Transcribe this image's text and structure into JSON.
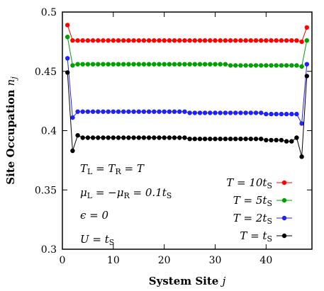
{
  "chart_data": {
    "type": "line",
    "xlabel": "System Site j",
    "ylabel": "Site Occupation n_j",
    "xlim": [
      0,
      49
    ],
    "ylim": [
      0.3,
      0.5
    ],
    "xticks": [
      "0",
      "10",
      "20",
      "30",
      "40"
    ],
    "yticks": [
      "0.3",
      "0.35",
      "0.4",
      "0.45",
      "0.5"
    ],
    "grid": false,
    "legend_position": "bottom-right",
    "annotations": [
      "T_L = T_R = T",
      "μ_L = −μ_R = 0.1t_S",
      "ϵ = 0",
      "U = t_S"
    ],
    "series": [
      {
        "name": "T = 10t_S",
        "color": "#ff0000",
        "x": [
          1,
          2,
          3,
          4,
          5,
          6,
          7,
          8,
          9,
          10,
          11,
          12,
          13,
          14,
          15,
          16,
          17,
          18,
          19,
          20,
          21,
          22,
          23,
          24,
          25,
          26,
          27,
          28,
          29,
          30,
          31,
          32,
          33,
          34,
          35,
          36,
          37,
          38,
          39,
          40,
          41,
          42,
          43,
          44,
          45,
          46,
          47,
          48
        ],
        "y": [
          0.489,
          0.476,
          0.476,
          0.476,
          0.476,
          0.476,
          0.476,
          0.476,
          0.476,
          0.476,
          0.476,
          0.476,
          0.476,
          0.476,
          0.476,
          0.476,
          0.476,
          0.476,
          0.476,
          0.476,
          0.476,
          0.476,
          0.476,
          0.476,
          0.476,
          0.476,
          0.476,
          0.476,
          0.476,
          0.476,
          0.476,
          0.476,
          0.476,
          0.476,
          0.476,
          0.476,
          0.476,
          0.476,
          0.476,
          0.476,
          0.476,
          0.476,
          0.476,
          0.476,
          0.476,
          0.476,
          0.475,
          0.487
        ]
      },
      {
        "name": "T = 5t_S",
        "color": "#00a000",
        "x": [
          1,
          2,
          3,
          4,
          5,
          6,
          7,
          8,
          9,
          10,
          11,
          12,
          13,
          14,
          15,
          16,
          17,
          18,
          19,
          20,
          21,
          22,
          23,
          24,
          25,
          26,
          27,
          28,
          29,
          30,
          31,
          32,
          33,
          34,
          35,
          36,
          37,
          38,
          39,
          40,
          41,
          42,
          43,
          44,
          45,
          46,
          47,
          48
        ],
        "y": [
          0.479,
          0.455,
          0.456,
          0.456,
          0.456,
          0.456,
          0.456,
          0.456,
          0.456,
          0.456,
          0.456,
          0.456,
          0.456,
          0.456,
          0.456,
          0.456,
          0.456,
          0.456,
          0.456,
          0.456,
          0.456,
          0.456,
          0.456,
          0.456,
          0.456,
          0.456,
          0.456,
          0.456,
          0.456,
          0.456,
          0.456,
          0.456,
          0.455,
          0.455,
          0.455,
          0.455,
          0.455,
          0.455,
          0.455,
          0.455,
          0.455,
          0.455,
          0.455,
          0.455,
          0.455,
          0.455,
          0.454,
          0.476
        ]
      },
      {
        "name": "T = 2t_S",
        "color": "#2020ff",
        "x": [
          1,
          2,
          3,
          4,
          5,
          6,
          7,
          8,
          9,
          10,
          11,
          12,
          13,
          14,
          15,
          16,
          17,
          18,
          19,
          20,
          21,
          22,
          23,
          24,
          25,
          26,
          27,
          28,
          29,
          30,
          31,
          32,
          33,
          34,
          35,
          36,
          37,
          38,
          39,
          40,
          41,
          42,
          43,
          44,
          45,
          46,
          47,
          48
        ],
        "y": [
          0.461,
          0.411,
          0.416,
          0.416,
          0.416,
          0.416,
          0.416,
          0.416,
          0.416,
          0.416,
          0.416,
          0.416,
          0.416,
          0.416,
          0.416,
          0.416,
          0.416,
          0.416,
          0.416,
          0.416,
          0.416,
          0.416,
          0.416,
          0.416,
          0.415,
          0.415,
          0.415,
          0.415,
          0.415,
          0.415,
          0.415,
          0.415,
          0.415,
          0.415,
          0.415,
          0.415,
          0.415,
          0.415,
          0.415,
          0.414,
          0.414,
          0.414,
          0.414,
          0.414,
          0.414,
          0.414,
          0.406,
          0.456
        ]
      },
      {
        "name": "T = t_S",
        "color": "#000000",
        "x": [
          1,
          2,
          3,
          4,
          5,
          6,
          7,
          8,
          9,
          10,
          11,
          12,
          13,
          14,
          15,
          16,
          17,
          18,
          19,
          20,
          21,
          22,
          23,
          24,
          25,
          26,
          27,
          28,
          29,
          30,
          31,
          32,
          33,
          34,
          35,
          36,
          37,
          38,
          39,
          40,
          41,
          42,
          43,
          44,
          45,
          46,
          47,
          48
        ],
        "y": [
          0.449,
          0.383,
          0.396,
          0.394,
          0.394,
          0.394,
          0.394,
          0.394,
          0.394,
          0.394,
          0.394,
          0.394,
          0.394,
          0.394,
          0.394,
          0.394,
          0.394,
          0.394,
          0.394,
          0.394,
          0.394,
          0.394,
          0.394,
          0.394,
          0.393,
          0.393,
          0.393,
          0.393,
          0.393,
          0.393,
          0.393,
          0.393,
          0.393,
          0.393,
          0.393,
          0.393,
          0.393,
          0.393,
          0.393,
          0.392,
          0.392,
          0.392,
          0.392,
          0.391,
          0.391,
          0.394,
          0.378,
          0.446
        ]
      }
    ]
  }
}
